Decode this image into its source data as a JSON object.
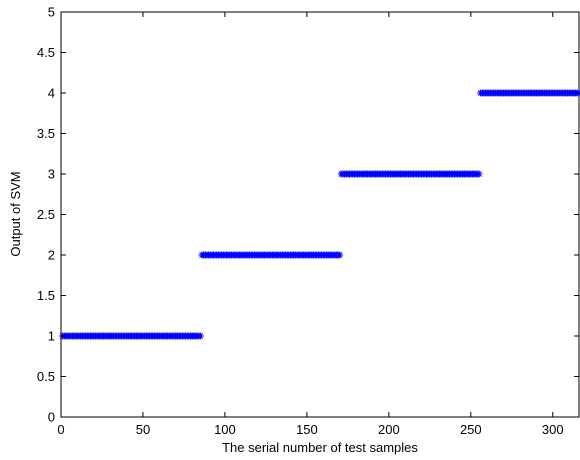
{
  "chart_data": {
    "type": "scatter",
    "title": "",
    "xlabel": "The serial number of test samples",
    "ylabel": "Output of SVM",
    "xlim": [
      0,
      316
    ],
    "ylim": [
      0,
      5
    ],
    "xticks": [
      "0",
      "50",
      "100",
      "150",
      "200",
      "250",
      "300"
    ],
    "xtick_values": [
      0,
      50,
      100,
      150,
      200,
      250,
      300
    ],
    "yticks": [
      "0",
      "0.5",
      "1",
      "1.5",
      "2",
      "2.5",
      "3",
      "3.5",
      "4",
      "4.5",
      "5"
    ],
    "ytick_values": [
      0,
      0.5,
      1,
      1.5,
      2,
      2.5,
      3,
      3.5,
      4,
      4.5,
      5
    ],
    "grid": false,
    "marker": "*",
    "marker_color": "#0000ff",
    "series": [
      {
        "segments": [
          {
            "y": 1,
            "x_start": 1,
            "x_end": 85
          },
          {
            "y": 2,
            "x_start": 86,
            "x_end": 170
          },
          {
            "y": 3,
            "x_start": 171,
            "x_end": 255
          },
          {
            "y": 4,
            "x_start": 256,
            "x_end": 316
          }
        ]
      }
    ]
  }
}
